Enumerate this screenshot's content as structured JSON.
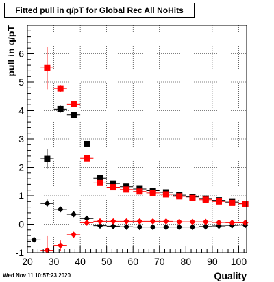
{
  "chart_data": {
    "type": "scatter",
    "title": "Fitted pull in q/pT for Global Rec All NoHits",
    "xlabel": "Quality",
    "ylabel": "pull in q/pT",
    "xlim": [
      20,
      103
    ],
    "ylim": [
      -1,
      7
    ],
    "xticks": [
      20,
      30,
      40,
      50,
      60,
      70,
      80,
      90,
      100
    ],
    "yticks": [
      -1,
      0,
      1,
      2,
      3,
      4,
      5,
      6
    ],
    "grid": true,
    "legend": "none",
    "series": [
      {
        "color": "#000000",
        "marker": "square",
        "x": [
          27.5,
          32.5,
          37.5,
          42.5,
          47.5,
          52.5,
          57.5,
          62.5,
          67.5,
          72.5,
          77.5,
          82.5,
          87.5,
          92.5,
          97.5,
          102.5
        ],
        "y": [
          2.3,
          4.05,
          3.85,
          2.82,
          1.62,
          1.43,
          1.32,
          1.24,
          1.18,
          1.12,
          1.02,
          0.96,
          0.9,
          0.84,
          0.78,
          0.72
        ],
        "yerr": [
          0.35,
          0.12,
          0.08,
          0.06,
          0.05,
          0.05,
          0.04,
          0.04,
          0.04,
          0.04,
          0.04,
          0.04,
          0.04,
          0.04,
          0.04,
          0.04
        ]
      },
      {
        "color": "#ff0000",
        "marker": "square",
        "x": [
          27.5,
          32.5,
          37.5,
          42.5,
          47.5,
          52.5,
          57.5,
          62.5,
          67.5,
          72.5,
          77.5,
          82.5,
          87.5,
          92.5,
          97.5,
          102.5
        ],
        "y": [
          5.5,
          4.78,
          4.22,
          2.32,
          1.45,
          1.3,
          1.22,
          1.15,
          1.1,
          1.05,
          0.98,
          0.92,
          0.86,
          0.8,
          0.75,
          0.72
        ],
        "yerr": [
          0.75,
          0.12,
          0.08,
          0.06,
          0.05,
          0.05,
          0.04,
          0.04,
          0.04,
          0.04,
          0.04,
          0.04,
          0.04,
          0.04,
          0.04,
          0.04
        ]
      },
      {
        "color": "#000000",
        "marker": "diamond",
        "x": [
          22.5,
          27.5,
          32.5,
          37.5,
          42.5,
          47.5,
          52.5,
          57.5,
          62.5,
          67.5,
          72.5,
          77.5,
          82.5,
          87.5,
          92.5,
          97.5,
          102.5
        ],
        "y": [
          -0.55,
          0.73,
          0.52,
          0.35,
          0.2,
          -0.05,
          -0.07,
          -0.09,
          -0.1,
          -0.1,
          -0.1,
          -0.1,
          -0.1,
          -0.08,
          -0.06,
          -0.04,
          -0.03
        ],
        "yerr": [
          0.1,
          0.14,
          0.06,
          0.04,
          0.03,
          0.02,
          0.02,
          0.02,
          0.02,
          0.02,
          0.02,
          0.02,
          0.02,
          0.02,
          0.02,
          0.02,
          0.02
        ]
      },
      {
        "color": "#ff0000",
        "marker": "diamond",
        "x": [
          27.5,
          32.5,
          37.5,
          42.5,
          47.5,
          52.5,
          57.5,
          62.5,
          67.5,
          72.5,
          77.5,
          82.5,
          87.5,
          92.5,
          97.5,
          102.5
        ],
        "y": [
          -0.92,
          -0.75,
          -0.37,
          0.05,
          0.1,
          0.1,
          0.1,
          0.1,
          0.1,
          0.1,
          0.08,
          0.08,
          0.08,
          0.06,
          0.05,
          0.05
        ],
        "yerr": [
          0.5,
          0.18,
          0.06,
          0.04,
          0.03,
          0.03,
          0.03,
          0.03,
          0.03,
          0.03,
          0.03,
          0.03,
          0.03,
          0.03,
          0.03,
          0.03
        ]
      }
    ]
  },
  "footer": {
    "timestamp": "Wed Nov 11 10:57:23 2020"
  }
}
